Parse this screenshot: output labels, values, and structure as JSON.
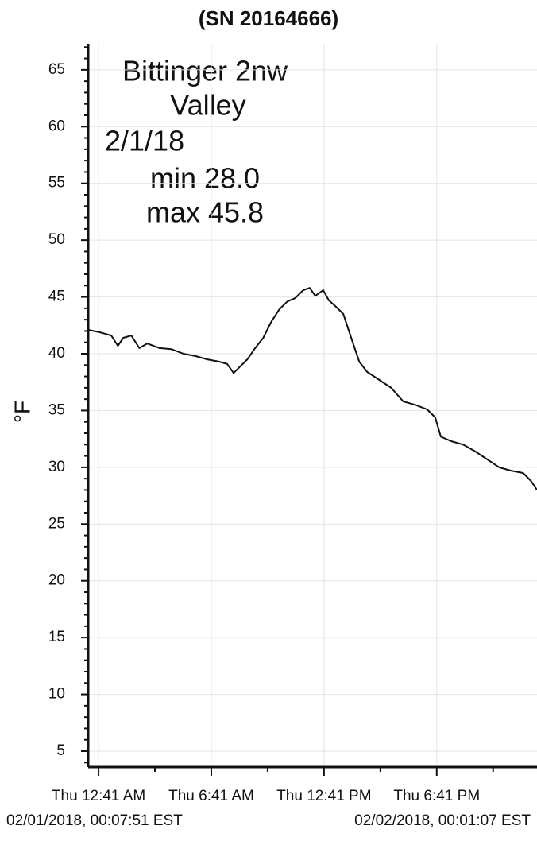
{
  "chart_data": {
    "type": "line",
    "title": "(SN 20164666)",
    "y_label": "°F",
    "annotations": [
      "Bittinger 2nw",
      "Valley",
      "2/1/18",
      "min 28.0",
      "max 45.8"
    ],
    "range_labels": [
      "02/01/2018, 00:07:51 EST",
      "02/02/2018, 00:01:07 EST"
    ],
    "x": [
      0.13,
      0.73,
      1.36,
      1.71,
      2.0,
      2.43,
      2.85,
      3.28,
      3.92,
      4.56,
      5.2,
      5.83,
      6.47,
      7.11,
      7.53,
      7.87,
      8.17,
      8.6,
      9.02,
      9.45,
      9.87,
      10.3,
      10.73,
      11.15,
      11.58,
      11.92,
      12.22,
      12.64,
      12.94,
      13.28,
      13.71,
      14.13,
      14.56,
      14.98,
      15.62,
      16.26,
      16.9,
      17.54,
      18.17,
      18.6,
      18.9,
      19.45,
      20.09,
      20.73,
      21.37,
      22.0,
      22.64,
      23.28,
      23.7,
      24.02
    ],
    "series": [
      {
        "color": "#111111",
        "values": [
          42.1,
          41.9,
          41.6,
          40.7,
          41.4,
          41.6,
          40.5,
          40.9,
          40.5,
          40.4,
          40.0,
          39.8,
          39.5,
          39.3,
          39.1,
          38.3,
          38.8,
          39.5,
          40.5,
          41.4,
          42.8,
          43.9,
          44.6,
          44.9,
          45.6,
          45.8,
          45.1,
          45.6,
          44.7,
          44.2,
          43.5,
          41.4,
          39.3,
          38.4,
          37.7,
          37.0,
          35.8,
          35.5,
          35.1,
          34.4,
          32.7,
          32.3,
          32.0,
          31.4,
          30.7,
          30.0,
          29.7,
          29.5,
          28.8,
          28.0
        ]
      }
    ],
    "xlim": [
      0.13,
      24.02
    ],
    "xticks": [
      {
        "value": 0.683,
        "label": "Thu 12:41 AM"
      },
      {
        "value": 6.683,
        "label": "Thu 6:41 AM"
      },
      {
        "value": 12.683,
        "label": "Thu 12:41 PM"
      },
      {
        "value": 18.683,
        "label": "Thu 6:41 PM"
      }
    ],
    "minor_xticks": [
      3.683,
      9.683,
      15.683,
      21.683
    ],
    "ylim": [
      3.6,
      67.3
    ],
    "yticks": [
      5,
      10,
      15,
      20,
      25,
      30,
      35,
      40,
      45,
      50,
      55,
      60,
      65
    ],
    "minor_yticks": [
      4,
      6,
      7,
      8,
      9,
      11,
      12,
      13,
      14,
      16,
      17,
      18,
      19,
      21,
      22,
      23,
      24,
      26,
      27,
      28,
      29,
      31,
      32,
      33,
      34,
      36,
      37,
      38,
      39,
      41,
      42,
      43,
      44,
      46,
      47,
      48,
      49,
      51,
      52,
      53,
      54,
      56,
      57,
      58,
      59,
      61,
      62,
      63,
      64,
      66,
      67
    ],
    "grid": true
  }
}
